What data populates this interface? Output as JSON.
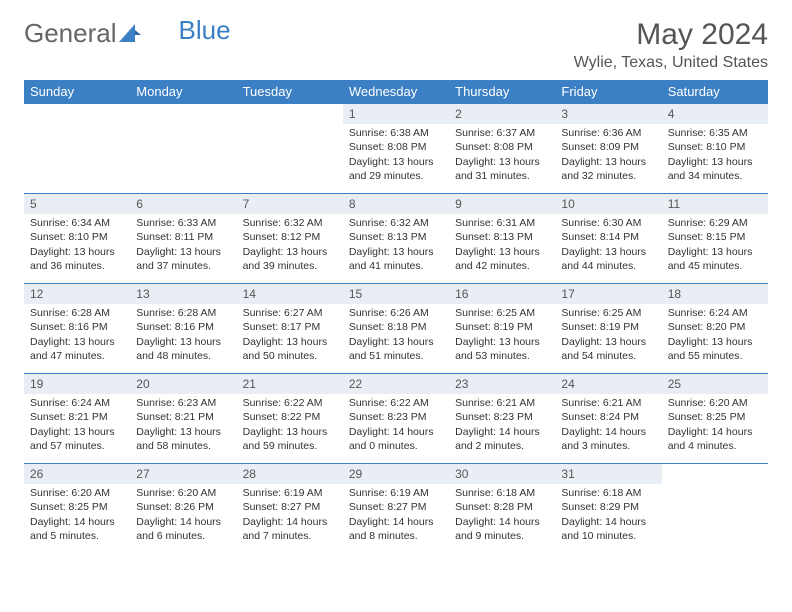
{
  "logo": {
    "text1": "General",
    "text2": "Blue"
  },
  "title": "May 2024",
  "location": "Wylie, Texas, United States",
  "colors": {
    "header_bg": "#3b7fc4",
    "header_text": "#ffffff",
    "daynum_bg": "#e8eef4",
    "border": "#3b7fc4",
    "text": "#333333",
    "title_text": "#555555"
  },
  "weekdays": [
    "Sunday",
    "Monday",
    "Tuesday",
    "Wednesday",
    "Thursday",
    "Friday",
    "Saturday"
  ],
  "weeks": [
    [
      {
        "num": "",
        "sunrise": "",
        "sunset": "",
        "daylight": ""
      },
      {
        "num": "",
        "sunrise": "",
        "sunset": "",
        "daylight": ""
      },
      {
        "num": "",
        "sunrise": "",
        "sunset": "",
        "daylight": ""
      },
      {
        "num": "1",
        "sunrise": "Sunrise: 6:38 AM",
        "sunset": "Sunset: 8:08 PM",
        "daylight": "Daylight: 13 hours and 29 minutes."
      },
      {
        "num": "2",
        "sunrise": "Sunrise: 6:37 AM",
        "sunset": "Sunset: 8:08 PM",
        "daylight": "Daylight: 13 hours and 31 minutes."
      },
      {
        "num": "3",
        "sunrise": "Sunrise: 6:36 AM",
        "sunset": "Sunset: 8:09 PM",
        "daylight": "Daylight: 13 hours and 32 minutes."
      },
      {
        "num": "4",
        "sunrise": "Sunrise: 6:35 AM",
        "sunset": "Sunset: 8:10 PM",
        "daylight": "Daylight: 13 hours and 34 minutes."
      }
    ],
    [
      {
        "num": "5",
        "sunrise": "Sunrise: 6:34 AM",
        "sunset": "Sunset: 8:10 PM",
        "daylight": "Daylight: 13 hours and 36 minutes."
      },
      {
        "num": "6",
        "sunrise": "Sunrise: 6:33 AM",
        "sunset": "Sunset: 8:11 PM",
        "daylight": "Daylight: 13 hours and 37 minutes."
      },
      {
        "num": "7",
        "sunrise": "Sunrise: 6:32 AM",
        "sunset": "Sunset: 8:12 PM",
        "daylight": "Daylight: 13 hours and 39 minutes."
      },
      {
        "num": "8",
        "sunrise": "Sunrise: 6:32 AM",
        "sunset": "Sunset: 8:13 PM",
        "daylight": "Daylight: 13 hours and 41 minutes."
      },
      {
        "num": "9",
        "sunrise": "Sunrise: 6:31 AM",
        "sunset": "Sunset: 8:13 PM",
        "daylight": "Daylight: 13 hours and 42 minutes."
      },
      {
        "num": "10",
        "sunrise": "Sunrise: 6:30 AM",
        "sunset": "Sunset: 8:14 PM",
        "daylight": "Daylight: 13 hours and 44 minutes."
      },
      {
        "num": "11",
        "sunrise": "Sunrise: 6:29 AM",
        "sunset": "Sunset: 8:15 PM",
        "daylight": "Daylight: 13 hours and 45 minutes."
      }
    ],
    [
      {
        "num": "12",
        "sunrise": "Sunrise: 6:28 AM",
        "sunset": "Sunset: 8:16 PM",
        "daylight": "Daylight: 13 hours and 47 minutes."
      },
      {
        "num": "13",
        "sunrise": "Sunrise: 6:28 AM",
        "sunset": "Sunset: 8:16 PM",
        "daylight": "Daylight: 13 hours and 48 minutes."
      },
      {
        "num": "14",
        "sunrise": "Sunrise: 6:27 AM",
        "sunset": "Sunset: 8:17 PM",
        "daylight": "Daylight: 13 hours and 50 minutes."
      },
      {
        "num": "15",
        "sunrise": "Sunrise: 6:26 AM",
        "sunset": "Sunset: 8:18 PM",
        "daylight": "Daylight: 13 hours and 51 minutes."
      },
      {
        "num": "16",
        "sunrise": "Sunrise: 6:25 AM",
        "sunset": "Sunset: 8:19 PM",
        "daylight": "Daylight: 13 hours and 53 minutes."
      },
      {
        "num": "17",
        "sunrise": "Sunrise: 6:25 AM",
        "sunset": "Sunset: 8:19 PM",
        "daylight": "Daylight: 13 hours and 54 minutes."
      },
      {
        "num": "18",
        "sunrise": "Sunrise: 6:24 AM",
        "sunset": "Sunset: 8:20 PM",
        "daylight": "Daylight: 13 hours and 55 minutes."
      }
    ],
    [
      {
        "num": "19",
        "sunrise": "Sunrise: 6:24 AM",
        "sunset": "Sunset: 8:21 PM",
        "daylight": "Daylight: 13 hours and 57 minutes."
      },
      {
        "num": "20",
        "sunrise": "Sunrise: 6:23 AM",
        "sunset": "Sunset: 8:21 PM",
        "daylight": "Daylight: 13 hours and 58 minutes."
      },
      {
        "num": "21",
        "sunrise": "Sunrise: 6:22 AM",
        "sunset": "Sunset: 8:22 PM",
        "daylight": "Daylight: 13 hours and 59 minutes."
      },
      {
        "num": "22",
        "sunrise": "Sunrise: 6:22 AM",
        "sunset": "Sunset: 8:23 PM",
        "daylight": "Daylight: 14 hours and 0 minutes."
      },
      {
        "num": "23",
        "sunrise": "Sunrise: 6:21 AM",
        "sunset": "Sunset: 8:23 PM",
        "daylight": "Daylight: 14 hours and 2 minutes."
      },
      {
        "num": "24",
        "sunrise": "Sunrise: 6:21 AM",
        "sunset": "Sunset: 8:24 PM",
        "daylight": "Daylight: 14 hours and 3 minutes."
      },
      {
        "num": "25",
        "sunrise": "Sunrise: 6:20 AM",
        "sunset": "Sunset: 8:25 PM",
        "daylight": "Daylight: 14 hours and 4 minutes."
      }
    ],
    [
      {
        "num": "26",
        "sunrise": "Sunrise: 6:20 AM",
        "sunset": "Sunset: 8:25 PM",
        "daylight": "Daylight: 14 hours and 5 minutes."
      },
      {
        "num": "27",
        "sunrise": "Sunrise: 6:20 AM",
        "sunset": "Sunset: 8:26 PM",
        "daylight": "Daylight: 14 hours and 6 minutes."
      },
      {
        "num": "28",
        "sunrise": "Sunrise: 6:19 AM",
        "sunset": "Sunset: 8:27 PM",
        "daylight": "Daylight: 14 hours and 7 minutes."
      },
      {
        "num": "29",
        "sunrise": "Sunrise: 6:19 AM",
        "sunset": "Sunset: 8:27 PM",
        "daylight": "Daylight: 14 hours and 8 minutes."
      },
      {
        "num": "30",
        "sunrise": "Sunrise: 6:18 AM",
        "sunset": "Sunset: 8:28 PM",
        "daylight": "Daylight: 14 hours and 9 minutes."
      },
      {
        "num": "31",
        "sunrise": "Sunrise: 6:18 AM",
        "sunset": "Sunset: 8:29 PM",
        "daylight": "Daylight: 14 hours and 10 minutes."
      },
      {
        "num": "",
        "sunrise": "",
        "sunset": "",
        "daylight": ""
      }
    ]
  ]
}
